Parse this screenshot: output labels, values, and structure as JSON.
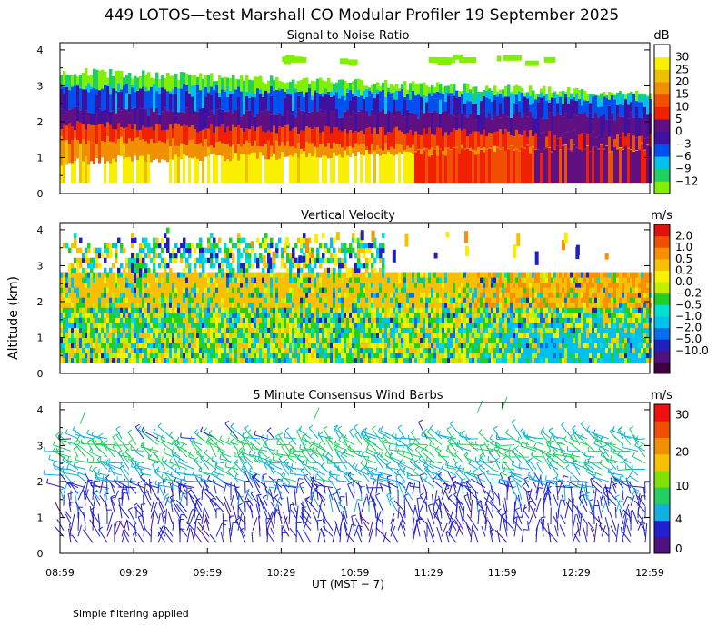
{
  "figure": {
    "title": "449 LOTOS—test Marshall CO Modular Profiler 19 September 2025",
    "ylabel": "Altitude (km)",
    "xlabel": "UT  (MST − 7)",
    "footnote": "Simple filtering applied"
  },
  "colors": {
    "snr": [
      "#80f000",
      "#20d060",
      "#00c0f0",
      "#0050f0",
      "#4010a0",
      "#601080",
      "#f02000",
      "#f05000",
      "#f09000",
      "#f0c000",
      "#f8f000",
      "#ffffff"
    ],
    "velocity": [
      "#400040",
      "#501080",
      "#2020c0",
      "#0070f0",
      "#00c0f0",
      "#00e0d0",
      "#20d020",
      "#c0f000",
      "#f8f000",
      "#f8c000",
      "#f89000",
      "#f05000",
      "#e01010"
    ],
    "wind": [
      "#501080",
      "#2020d0",
      "#10b0e0",
      "#20d060",
      "#80e000",
      "#f8c000",
      "#f09000",
      "#f05000",
      "#f01010"
    ]
  },
  "chart_data": [
    {
      "type": "heatmap",
      "title": "Signal to Noise Ratio",
      "units": "dB",
      "x_ticks": [
        "08:59",
        "09:29",
        "09:59",
        "10:29",
        "10:59",
        "11:29",
        "11:59",
        "12:29",
        "12:59"
      ],
      "y_ticks": [
        "0",
        "1",
        "2",
        "3",
        "4"
      ],
      "ylim": [
        0,
        4.2
      ],
      "colorbar_labels": [
        "30",
        "25",
        "20",
        "15",
        "10",
        "5",
        "0",
        "−3",
        "−6",
        "−9",
        "−12"
      ],
      "layers_dB": [
        {
          "top_km_start": 0.9,
          "top_km_end": 1.3,
          "value": 30
        },
        {
          "top_km_start": 1.5,
          "top_km_end": 1.1,
          "value": 20
        },
        {
          "top_km_start": 1.9,
          "top_km_end": 1.6,
          "value": 12
        },
        {
          "top_km_start": 2.3,
          "top_km_end": 2.15,
          "value": 4
        },
        {
          "top_km_start": 2.9,
          "top_km_end": 2.5,
          "value": -2
        },
        {
          "top_km_start": 3.0,
          "top_km_end": 2.65,
          "value": -5
        },
        {
          "top_km_start": 3.4,
          "top_km_end": 2.75,
          "value": -11
        }
      ]
    },
    {
      "type": "heatmap",
      "title": "Vertical Velocity",
      "units": "m/s",
      "x_ticks": [
        "08:59",
        "09:29",
        "09:59",
        "10:29",
        "10:59",
        "11:29",
        "11:59",
        "12:29",
        "12:59"
      ],
      "y_ticks": [
        "0",
        "1",
        "2",
        "3",
        "4"
      ],
      "ylim": [
        0,
        4.2
      ],
      "colorbar_labels": [
        "2.0",
        "1.0",
        "0.5",
        "0.2",
        "0.0",
        "−0.2",
        "−0.5",
        "−1.0",
        "−2.0",
        "−5.0",
        "−10.0"
      ],
      "data_top_km": 2.8
    },
    {
      "type": "scatter",
      "title": "5 Minute Consensus Wind Barbs",
      "units": "m/s",
      "x_ticks": [
        "08:59",
        "09:29",
        "09:59",
        "10:29",
        "10:59",
        "11:29",
        "11:59",
        "12:29",
        "12:59"
      ],
      "y_ticks": [
        "0",
        "1",
        "2",
        "3",
        "4"
      ],
      "ylim": [
        0,
        4.2
      ],
      "colorbar_labels": [
        "30",
        "20",
        "10",
        "4",
        "0"
      ],
      "wind_speed_by_altitude": [
        {
          "altitude_km": 0.5,
          "speed_ms": 2
        },
        {
          "altitude_km": 1.5,
          "speed_ms": 3
        },
        {
          "altitude_km": 2.2,
          "speed_ms": 6
        },
        {
          "altitude_km": 2.8,
          "speed_ms": 8
        },
        {
          "altitude_km": 3.4,
          "speed_ms": 5
        }
      ]
    }
  ]
}
